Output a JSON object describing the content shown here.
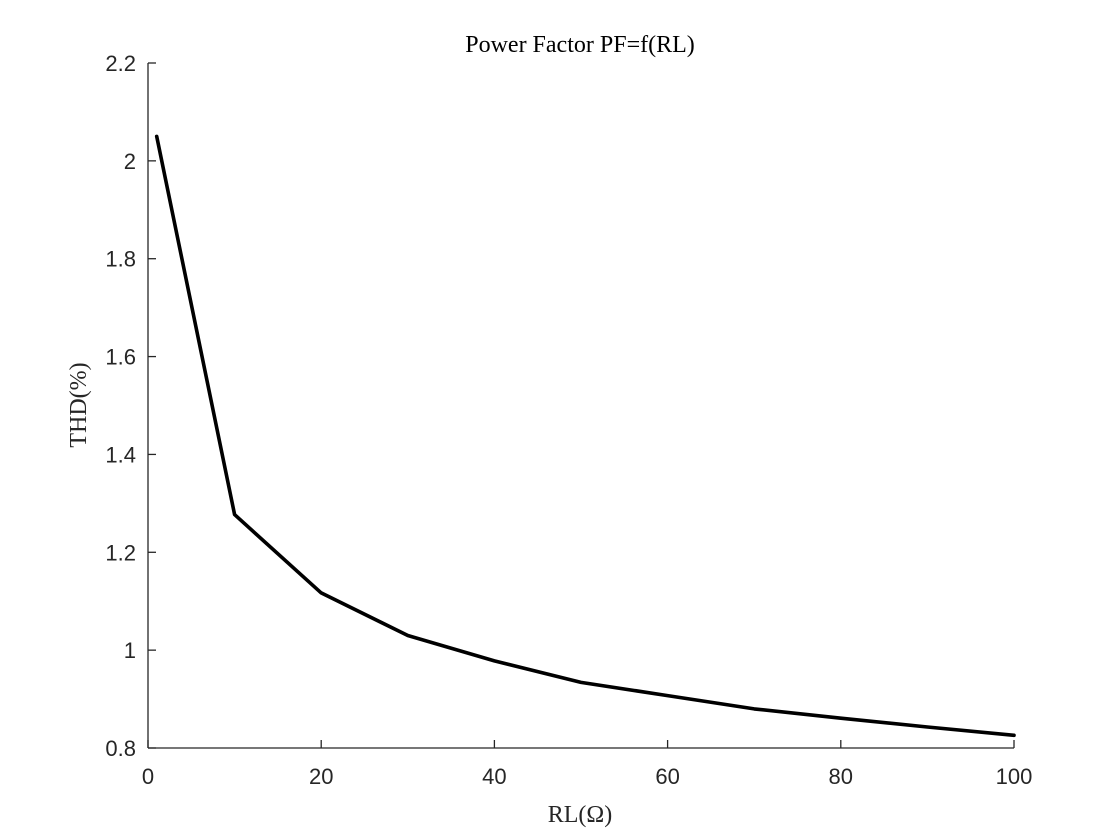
{
  "chart_data": {
    "type": "line",
    "title": "Power Factor PF=f(RL)",
    "xlabel": "RL(Ω)",
    "ylabel": "THD(%)",
    "xlim": [
      0,
      100
    ],
    "ylim": [
      0.8,
      2.2
    ],
    "xticks": [
      0,
      20,
      40,
      60,
      80,
      100
    ],
    "xtick_labels": [
      "0",
      "20",
      "40",
      "60",
      "80",
      "100"
    ],
    "yticks": [
      0.8,
      1.0,
      1.2,
      1.4,
      1.6,
      1.8,
      2.0,
      2.2
    ],
    "ytick_labels": [
      "0.8",
      "1",
      "1.2",
      "1.4",
      "1.6",
      "1.8",
      "2",
      "2.2"
    ],
    "grid": false,
    "legend": "none",
    "series": [
      {
        "color": "#000000",
        "x": [
          1,
          10,
          20,
          30,
          40,
          50,
          60,
          70,
          80,
          90,
          100
        ],
        "y": [
          2.05,
          1.277,
          1.117,
          1.03,
          0.978,
          0.934,
          0.907,
          0.88,
          0.861,
          0.843,
          0.826
        ]
      }
    ]
  }
}
